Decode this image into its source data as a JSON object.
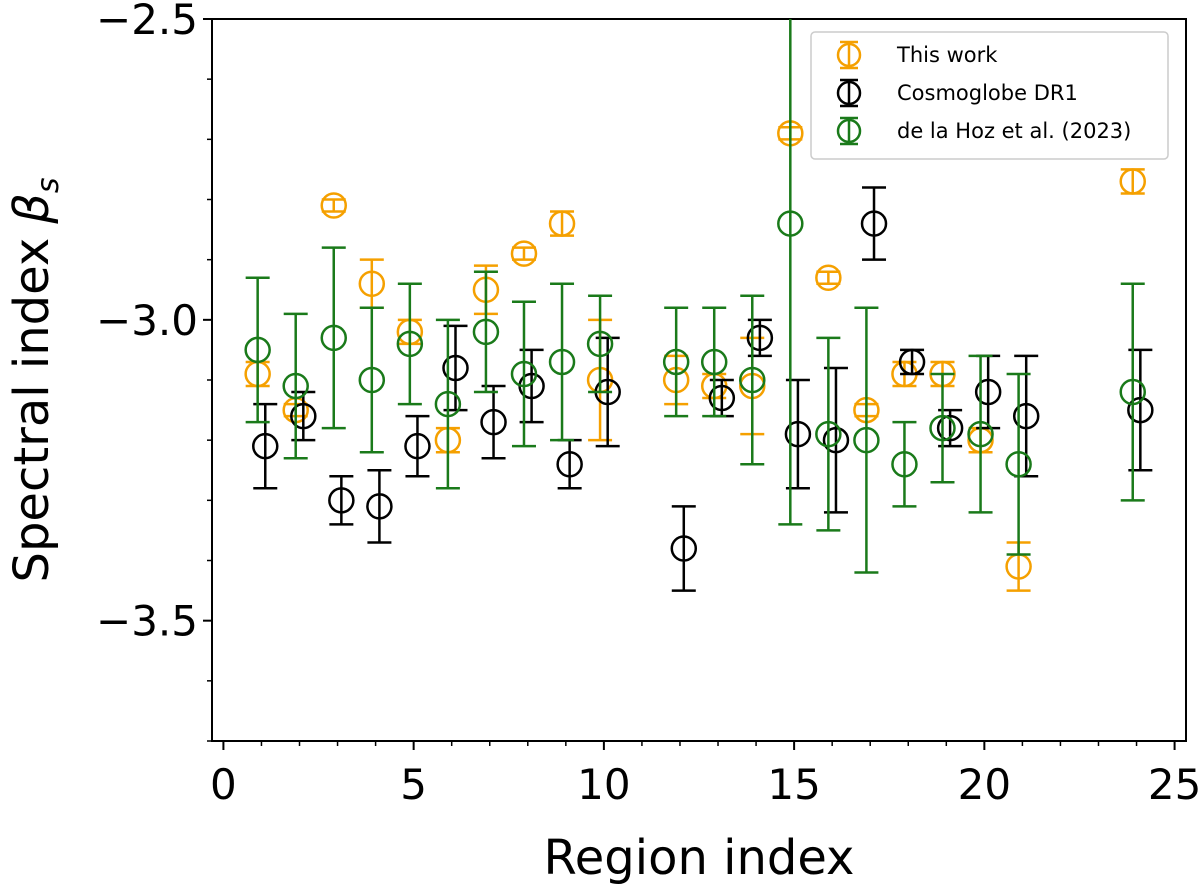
{
  "chart_data": {
    "type": "scatter",
    "xlabel": "Region index",
    "ylabel": "Spectral index",
    "ylabel_symbol": "β",
    "ylabel_subscript": "s",
    "xlim": [
      -0.3,
      25.3
    ],
    "ylim": [
      -3.7,
      -2.5
    ],
    "xticks": [
      0,
      5,
      10,
      15,
      20,
      25
    ],
    "xtick_labels": [
      "0",
      "5",
      "10",
      "15",
      "20",
      "25"
    ],
    "yticks": [
      -2.5,
      -3.0,
      -3.5
    ],
    "ytick_labels": [
      "−2.5",
      "−3.0",
      "−3.5"
    ],
    "legend_position": "top-right",
    "series": [
      {
        "name": "This work",
        "color": "#f5a000",
        "offset": -0.1,
        "points": [
          {
            "x": 1,
            "y": -3.09,
            "err": 0.02
          },
          {
            "x": 2,
            "y": -3.15,
            "err": 0.01
          },
          {
            "x": 3,
            "y": -2.81,
            "err": 0.01
          },
          {
            "x": 4,
            "y": -2.94,
            "err": 0.04
          },
          {
            "x": 5,
            "y": -3.02,
            "err": 0.02
          },
          {
            "x": 6,
            "y": -3.2,
            "err": 0.02
          },
          {
            "x": 7,
            "y": -2.95,
            "err": 0.04
          },
          {
            "x": 8,
            "y": -2.89,
            "err": 0.01
          },
          {
            "x": 9,
            "y": -2.84,
            "err": 0.02
          },
          {
            "x": 10,
            "y": -3.1,
            "err": 0.1
          },
          {
            "x": 12,
            "y": -3.1,
            "err": 0.04
          },
          {
            "x": 13,
            "y": -3.11,
            "err": 0.02
          },
          {
            "x": 14,
            "y": -3.11,
            "err": 0.08
          },
          {
            "x": 15,
            "y": -2.69,
            "err": 0.01
          },
          {
            "x": 16,
            "y": -2.93,
            "err": 0.01
          },
          {
            "x": 17,
            "y": -3.15,
            "err": 0.01
          },
          {
            "x": 18,
            "y": -3.09,
            "err": 0.02
          },
          {
            "x": 19,
            "y": -3.09,
            "err": 0.02
          },
          {
            "x": 20,
            "y": -3.2,
            "err": 0.02
          },
          {
            "x": 21,
            "y": -3.41,
            "err": 0.04
          },
          {
            "x": 24,
            "y": -2.77,
            "err": 0.02
          }
        ]
      },
      {
        "name": "Cosmoglobe DR1",
        "color": "#000000",
        "offset": 0.1,
        "points": [
          {
            "x": 1,
            "y": -3.21,
            "err": 0.07
          },
          {
            "x": 2,
            "y": -3.16,
            "err": 0.04
          },
          {
            "x": 3,
            "y": -3.3,
            "err": 0.04
          },
          {
            "x": 4,
            "y": -3.31,
            "err": 0.06
          },
          {
            "x": 5,
            "y": -3.21,
            "err": 0.05
          },
          {
            "x": 6,
            "y": -3.08,
            "err": 0.07
          },
          {
            "x": 7,
            "y": -3.17,
            "err": 0.06
          },
          {
            "x": 8,
            "y": -3.11,
            "err": 0.06
          },
          {
            "x": 9,
            "y": -3.24,
            "err": 0.04
          },
          {
            "x": 10,
            "y": -3.12,
            "err": 0.09
          },
          {
            "x": 12,
            "y": -3.38,
            "err": 0.07
          },
          {
            "x": 13,
            "y": -3.13,
            "err": 0.03
          },
          {
            "x": 14,
            "y": -3.03,
            "err": 0.03
          },
          {
            "x": 15,
            "y": -3.19,
            "err": 0.09
          },
          {
            "x": 16,
            "y": -3.2,
            "err": 0.12
          },
          {
            "x": 17,
            "y": -2.84,
            "err": 0.06
          },
          {
            "x": 18,
            "y": -3.07,
            "err": 0.02
          },
          {
            "x": 19,
            "y": -3.18,
            "err": 0.03
          },
          {
            "x": 20,
            "y": -3.12,
            "err": 0.06
          },
          {
            "x": 21,
            "y": -3.16,
            "err": 0.1
          },
          {
            "x": 24,
            "y": -3.15,
            "err": 0.1
          }
        ]
      },
      {
        "name": "de la Hoz et al. (2023)",
        "color": "#1a7a1a",
        "offset": -0.1,
        "points": [
          {
            "x": 1,
            "y": -3.05,
            "err": 0.12
          },
          {
            "x": 2,
            "y": -3.11,
            "err": 0.12
          },
          {
            "x": 3,
            "y": -3.03,
            "err": 0.15
          },
          {
            "x": 4,
            "y": -3.1,
            "err": 0.12
          },
          {
            "x": 5,
            "y": -3.04,
            "err": 0.1
          },
          {
            "x": 6,
            "y": -3.14,
            "err": 0.14
          },
          {
            "x": 7,
            "y": -3.02,
            "err": 0.1
          },
          {
            "x": 8,
            "y": -3.09,
            "err": 0.12
          },
          {
            "x": 9,
            "y": -3.07,
            "err": 0.13
          },
          {
            "x": 10,
            "y": -3.04,
            "err": 0.08
          },
          {
            "x": 12,
            "y": -3.07,
            "err": 0.09
          },
          {
            "x": 13,
            "y": -3.07,
            "err": 0.09
          },
          {
            "x": 14,
            "y": -3.1,
            "err": 0.14
          },
          {
            "x": 15,
            "y": -2.84,
            "err": 0.5
          },
          {
            "x": 16,
            "y": -3.19,
            "err": 0.16
          },
          {
            "x": 17,
            "y": -3.2,
            "err": 0.22
          },
          {
            "x": 18,
            "y": -3.24,
            "err": 0.07
          },
          {
            "x": 19,
            "y": -3.18,
            "err": 0.09
          },
          {
            "x": 20,
            "y": -3.19,
            "err": 0.13
          },
          {
            "x": 21,
            "y": -3.24,
            "err": 0.15
          },
          {
            "x": 24,
            "y": -3.12,
            "err": 0.18
          }
        ]
      }
    ]
  }
}
